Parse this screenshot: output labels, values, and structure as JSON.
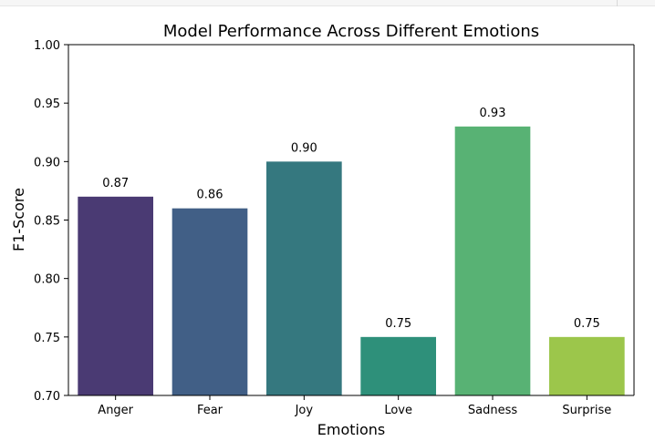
{
  "chart_data": {
    "type": "bar",
    "title": "Model Performance Across Different Emotions",
    "xlabel": "Emotions",
    "ylabel": "F1-Score",
    "categories": [
      "Anger",
      "Fear",
      "Joy",
      "Love",
      "Sadness",
      "Surprise"
    ],
    "values": [
      0.87,
      0.86,
      0.9,
      0.75,
      0.93,
      0.75
    ],
    "data_labels": [
      "0.87",
      "0.86",
      "0.90",
      "0.75",
      "0.93",
      "0.75"
    ],
    "ylim": [
      0.7,
      1.0
    ],
    "yticks": [
      0.7,
      0.75,
      0.8,
      0.85,
      0.9,
      0.95,
      1.0
    ],
    "ytick_labels": [
      "0.70",
      "0.75",
      "0.80",
      "0.85",
      "0.90",
      "0.95",
      "1.00"
    ],
    "colors": [
      "#4a3a73",
      "#415f86",
      "#35787f",
      "#2e907a",
      "#58b274",
      "#9cc64b"
    ],
    "grid": false,
    "legend": "none"
  }
}
